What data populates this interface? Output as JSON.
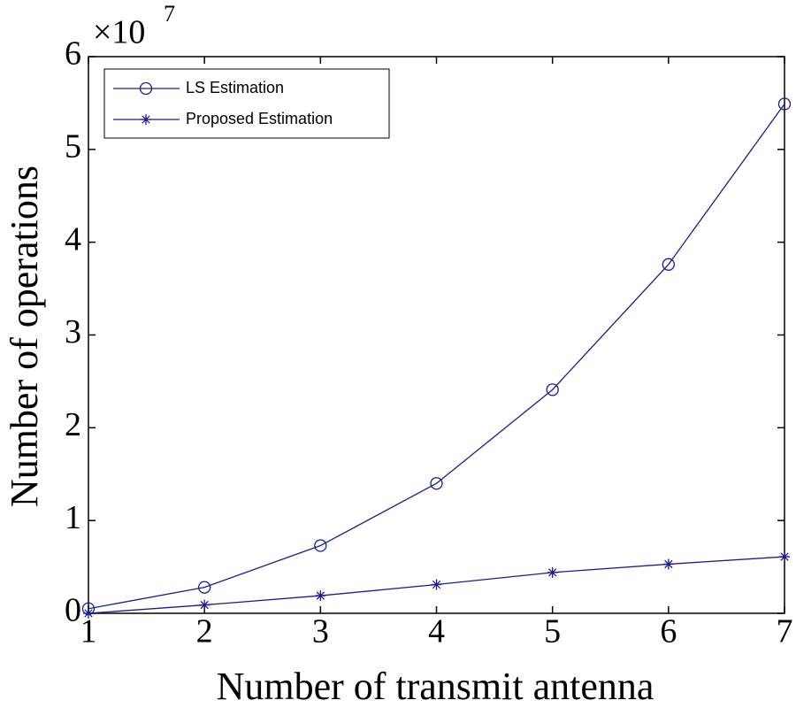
{
  "chart_data": {
    "type": "line",
    "xlabel": "Number of transmit antenna",
    "ylabel": "Number of operations",
    "y_multiplier": {
      "base": "×10",
      "exponent": "7"
    },
    "x": [
      1,
      2,
      3,
      4,
      5,
      6,
      7
    ],
    "xlim": [
      1,
      7
    ],
    "xticks": [
      1,
      2,
      3,
      4,
      5,
      6,
      7
    ],
    "ylim": [
      0,
      6
    ],
    "yticks": [
      0,
      1,
      2,
      3,
      4,
      5,
      6
    ],
    "grid": false,
    "legend": "upper left",
    "series": [
      {
        "name": "LS Estimation",
        "color": "#1c1c8f",
        "marker": "circle",
        "values": [
          0.05,
          0.28,
          0.73,
          1.4,
          2.41,
          3.76,
          5.49
        ]
      },
      {
        "name": "Proposed Estimation",
        "color": "#1c1c8f",
        "marker": "star",
        "values": [
          0.0,
          0.09,
          0.19,
          0.31,
          0.44,
          0.53,
          0.61
        ]
      }
    ]
  }
}
